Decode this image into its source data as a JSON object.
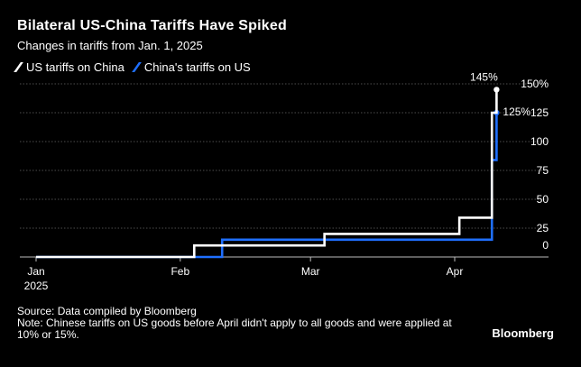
{
  "title": "Bilateral US-China Tariffs Have Spiked",
  "subtitle": "Changes in tariffs from Jan. 1, 2025",
  "footer": {
    "source": "Source: Data compiled by Bloomberg",
    "note": "Note: Chinese tariffs on US goods before April didn't apply to all goods and were applied at 10% or 15%.",
    "brand": "Bloomberg"
  },
  "colors": {
    "background": "#000000",
    "us_series": "#ffffff",
    "china_series": "#1f6fff",
    "grid": "#666666"
  },
  "chart_data": {
    "type": "line",
    "step": true,
    "y_axis_position": "right",
    "legend_position": "top-left",
    "grid": true,
    "ylim": [
      0,
      150
    ],
    "xlim": [
      "2025-01-01",
      "2025-04-13"
    ],
    "y_ticks": [
      {
        "value": 0,
        "label": "0"
      },
      {
        "value": 25,
        "label": "25"
      },
      {
        "value": 50,
        "label": "50"
      },
      {
        "value": 75,
        "label": "75"
      },
      {
        "value": 100,
        "label": "100"
      },
      {
        "value": 125,
        "label": "125"
      },
      {
        "value": 150,
        "label": "150%"
      }
    ],
    "x_ticks": [
      {
        "date": "2025-01-01",
        "label": "Jan",
        "sublabel": "2025"
      },
      {
        "date": "2025-02-01",
        "label": "Feb",
        "sublabel": ""
      },
      {
        "date": "2025-03-01",
        "label": "Mar",
        "sublabel": ""
      },
      {
        "date": "2025-04-01",
        "label": "Apr",
        "sublabel": ""
      }
    ],
    "series": [
      {
        "name": "US tariffs on China",
        "color": "#ffffff",
        "end_label": "145%",
        "points": [
          {
            "date": "2025-01-01",
            "value": 0
          },
          {
            "date": "2025-02-04",
            "value": 10
          },
          {
            "date": "2025-03-04",
            "value": 20
          },
          {
            "date": "2025-04-02",
            "value": 34
          },
          {
            "date": "2025-04-09",
            "value": 125
          },
          {
            "date": "2025-04-10",
            "value": 145
          }
        ]
      },
      {
        "name": "China's tariffs on US",
        "color": "#1f6fff",
        "end_label": "125%",
        "points": [
          {
            "date": "2025-01-01",
            "value": 0
          },
          {
            "date": "2025-02-10",
            "value": 15
          },
          {
            "date": "2025-04-09",
            "value": 84
          },
          {
            "date": "2025-04-10",
            "value": 125
          }
        ]
      }
    ]
  }
}
